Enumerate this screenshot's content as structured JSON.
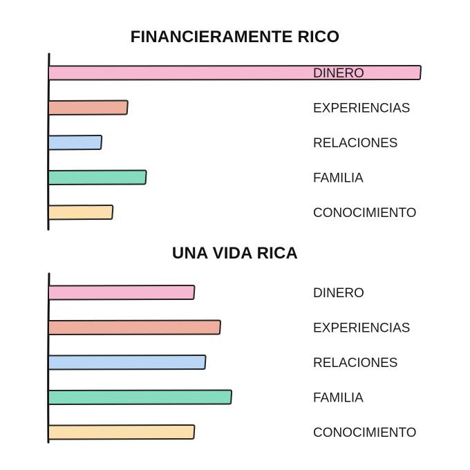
{
  "chart_data": [
    {
      "type": "bar",
      "title": "FINANCIERAMENTE RICO",
      "categories": [
        "DINERO",
        "EXPERIENCIAS",
        "RELACIONES",
        "FAMILIA",
        "CONOCIMIENTO"
      ],
      "values": [
        100,
        21,
        14,
        26,
        17
      ],
      "colors": [
        "#f6b8d3",
        "#eeaf9f",
        "#bad6f7",
        "#85dcbf",
        "#fbe0ad"
      ]
    },
    {
      "type": "bar",
      "title": "UNA VIDA RICA",
      "categories": [
        "DINERO",
        "EXPERIENCIAS",
        "RELACIONES",
        "FAMILIA",
        "CONOCIMIENTO"
      ],
      "values": [
        39,
        46,
        42,
        49,
        39
      ],
      "colors": [
        "#f6b8d3",
        "#eeaf9f",
        "#bad6f7",
        "#85dcbf",
        "#fbe0ad"
      ]
    }
  ]
}
